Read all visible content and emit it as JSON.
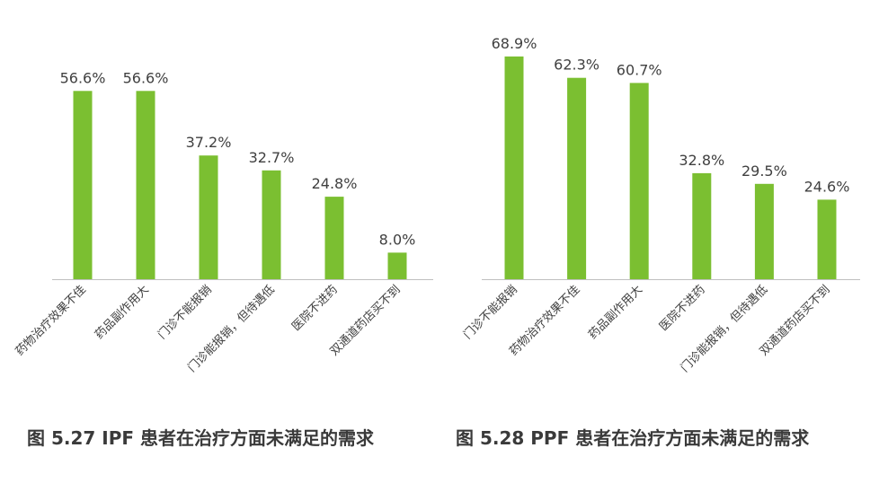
{
  "figures": [
    {
      "caption": "图 5.27 IPF 患者在治疗方面未满足的需求"
    },
    {
      "caption": "图 5.28 PPF 患者在治疗方面未满足的需求"
    }
  ],
  "colors": {
    "bar": "#7bbf31",
    "axis": "#bfbfbf",
    "label": "#404040"
  },
  "chart_data": [
    {
      "type": "bar",
      "title": "",
      "categories": [
        "药物治疗效果不佳",
        "药品副作用大",
        "门诊不能报销",
        "门诊能报销，但待遇低",
        "医院不进药",
        "双通道药店买不到"
      ],
      "values": [
        56.6,
        56.6,
        37.2,
        32.7,
        24.8,
        8.0
      ],
      "value_labels": [
        "56.6%",
        "56.6%",
        "37.2%",
        "32.7%",
        "24.8%",
        "8.0%"
      ],
      "unit": "%",
      "ylim": [
        0,
        75
      ],
      "grid": false,
      "legend": "none"
    },
    {
      "type": "bar",
      "title": "",
      "categories": [
        "门诊不能报销",
        "药物治疗效果不佳",
        "药品副作用大",
        "医院不进药",
        "门诊能报销，但待遇低",
        "双通道药店买不到"
      ],
      "values": [
        68.9,
        62.3,
        60.7,
        32.8,
        29.5,
        24.6
      ],
      "value_labels": [
        "68.9%",
        "62.3%",
        "60.7%",
        "32.8%",
        "29.5%",
        "24.6%"
      ],
      "unit": "%",
      "ylim": [
        0,
        75
      ],
      "grid": false,
      "legend": "none"
    }
  ]
}
